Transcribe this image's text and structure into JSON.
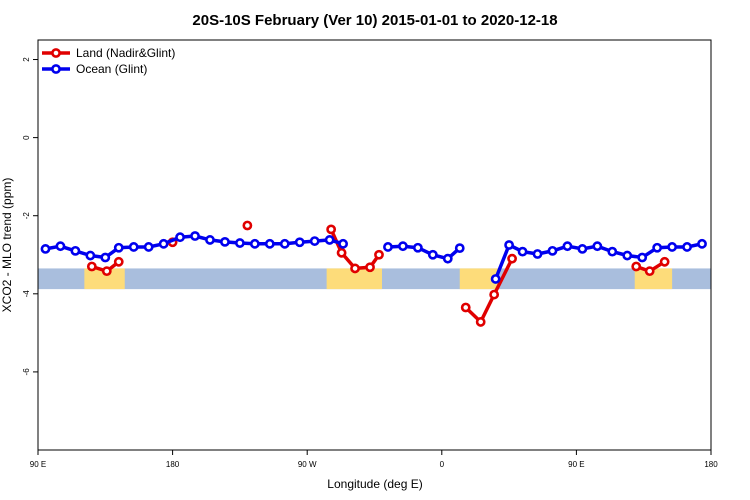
{
  "chart_data": {
    "type": "line",
    "title": "20S-10S February (Ver 10)   2015-01-01 to 2020-12-18",
    "xlabel": "Longitude (deg E)",
    "ylabel": "XCO2 - MLO trend (ppm)",
    "xlim": [
      90,
      540
    ],
    "ylim": [
      -8,
      2.5
    ],
    "x_ticks": [
      {
        "value": 90,
        "label": "90 E"
      },
      {
        "value": 180,
        "label": "180"
      },
      {
        "value": 270,
        "label": "90 W"
      },
      {
        "value": 360,
        "label": "0"
      },
      {
        "value": 450,
        "label": "90 E"
      },
      {
        "value": 540,
        "label": "180"
      }
    ],
    "y_ticks": [
      {
        "value": 2,
        "label": "2"
      },
      {
        "value": 0,
        "label": "0"
      },
      {
        "value": -2,
        "label": "-2"
      },
      {
        "value": -4,
        "label": "-4"
      },
      {
        "value": -6,
        "label": "-6"
      }
    ],
    "legend_position": "top-left",
    "colors": {
      "land": "#e00000",
      "ocean": "#0000ee",
      "land_mask": "#fddc7a",
      "ocean_mask": "#a9bedd"
    },
    "mask_band": {
      "y_top": -3.35,
      "y_bottom": -3.88
    },
    "land_mask_spans": [
      [
        121,
        148
      ],
      [
        283,
        320
      ],
      [
        372,
        398
      ],
      [
        489,
        514
      ]
    ],
    "series": [
      {
        "name": "Land (Nadir&Glint)",
        "color": "#e00000",
        "segments": [
          [
            [
              126,
              -3.3
            ],
            [
              136,
              -3.42
            ],
            [
              144,
              -3.18
            ]
          ],
          [
            [
              180,
              -2.68
            ]
          ],
          [
            [
              230,
              -2.25
            ]
          ],
          [
            [
              286,
              -2.35
            ],
            [
              293,
              -2.95
            ],
            [
              302,
              -3.35
            ],
            [
              312,
              -3.32
            ],
            [
              318,
              -3.0
            ]
          ],
          [
            [
              376,
              -4.35
            ],
            [
              386,
              -4.72
            ],
            [
              395,
              -4.02
            ],
            [
              407,
              -3.1
            ]
          ],
          [
            [
              490,
              -3.3
            ],
            [
              499,
              -3.42
            ],
            [
              509,
              -3.18
            ]
          ]
        ]
      },
      {
        "name": "Ocean (Glint)",
        "color": "#0000ee",
        "segments": [
          [
            [
              95,
              -2.85
            ],
            [
              105,
              -2.78
            ],
            [
              115,
              -2.9
            ],
            [
              125,
              -3.02
            ],
            [
              135,
              -3.07
            ],
            [
              144,
              -2.82
            ],
            [
              154,
              -2.8
            ],
            [
              164,
              -2.8
            ],
            [
              174,
              -2.72
            ],
            [
              185,
              -2.55
            ],
            [
              195,
              -2.52
            ],
            [
              205,
              -2.62
            ],
            [
              215,
              -2.67
            ],
            [
              225,
              -2.7
            ],
            [
              235,
              -2.72
            ],
            [
              245,
              -2.72
            ],
            [
              255,
              -2.72
            ],
            [
              265,
              -2.68
            ],
            [
              275,
              -2.65
            ],
            [
              285,
              -2.62
            ],
            [
              294,
              -2.72
            ]
          ],
          [
            [
              324,
              -2.8
            ],
            [
              334,
              -2.78
            ],
            [
              344,
              -2.82
            ],
            [
              354,
              -3.0
            ],
            [
              364,
              -3.1
            ],
            [
              372,
              -2.83
            ]
          ],
          [
            [
              396,
              -3.62
            ],
            [
              405,
              -2.75
            ],
            [
              414,
              -2.92
            ],
            [
              424,
              -2.98
            ],
            [
              434,
              -2.9
            ],
            [
              444,
              -2.78
            ],
            [
              454,
              -2.85
            ],
            [
              464,
              -2.78
            ],
            [
              474,
              -2.92
            ],
            [
              484,
              -3.02
            ],
            [
              494,
              -3.07
            ],
            [
              504,
              -2.82
            ],
            [
              514,
              -2.8
            ],
            [
              524,
              -2.8
            ],
            [
              534,
              -2.72
            ]
          ]
        ]
      }
    ]
  }
}
